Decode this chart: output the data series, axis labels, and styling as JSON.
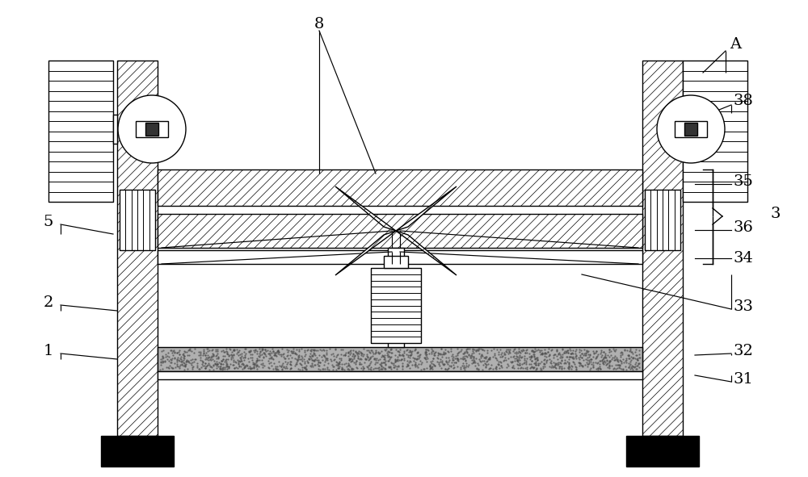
{
  "bg_color": "#ffffff",
  "line_color": "#000000",
  "fig_width": 10.0,
  "fig_height": 5.91,
  "lw": 1.0,
  "hatch_lw": 0.5
}
